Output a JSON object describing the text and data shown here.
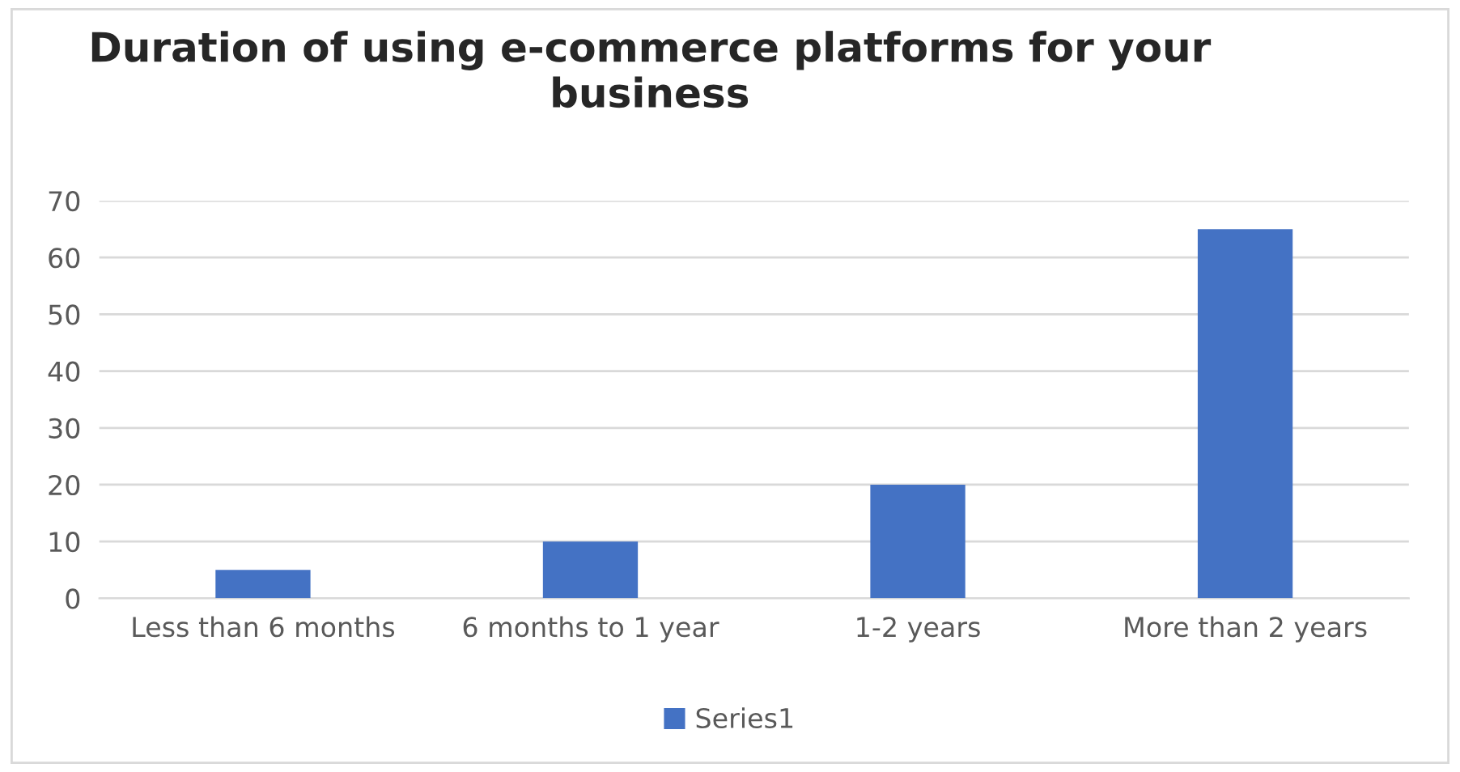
{
  "chart_data": {
    "type": "bar",
    "title": "Duration of using e-commerce platforms for your business",
    "categories": [
      "Less than 6 months",
      "6 months to 1 year",
      "1-2 years",
      "More than 2 years"
    ],
    "series": [
      {
        "name": "Series1",
        "color": "#4472c4",
        "values": [
          5,
          10,
          20,
          65
        ]
      }
    ],
    "ylim": [
      0,
      70
    ],
    "yticks": [
      0,
      10,
      20,
      30,
      40,
      50,
      60,
      70
    ],
    "grid": "y",
    "legend": "bottom"
  }
}
